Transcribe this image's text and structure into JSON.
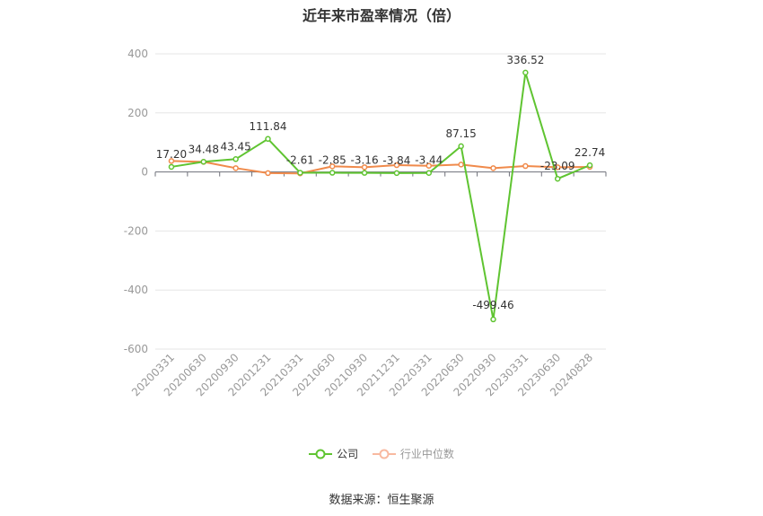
{
  "chart_data": {
    "type": "line",
    "title": "近年来市盈率情况（倍）",
    "categories": [
      "20200331",
      "20200630",
      "20200930",
      "20201231",
      "20210331",
      "20210630",
      "20210930",
      "20211231",
      "20220331",
      "20220630",
      "20220930",
      "20230331",
      "20230630",
      "20240828"
    ],
    "ylim": [
      -600,
      400
    ],
    "yticks": [
      -600,
      -400,
      -200,
      0,
      200,
      400
    ],
    "grid": true,
    "legend_position": "bottom",
    "series": [
      {
        "name": "公司",
        "color": "#5fc431",
        "values": [
          17.2,
          34.48,
          43.45,
          111.84,
          -2.61,
          -2.85,
          -3.16,
          -3.84,
          -3.44,
          87.15,
          -499.46,
          336.52,
          -23.09,
          22.74
        ],
        "labels": [
          "17.20",
          "34.48",
          "43.45",
          "111.84",
          "-2.61",
          "-2.85",
          "-3.16",
          "-3.84",
          "-3.44",
          "87.15",
          "-499.46",
          "336.52",
          "-23.09",
          "22.74"
        ]
      },
      {
        "name": "行业中位数",
        "color": "#f08a4b",
        "values": [
          37,
          34,
          13,
          -4,
          -5,
          19,
          16,
          23,
          21,
          25,
          13,
          20,
          16,
          17
        ]
      }
    ]
  },
  "source": "数据来源：恒生聚源"
}
